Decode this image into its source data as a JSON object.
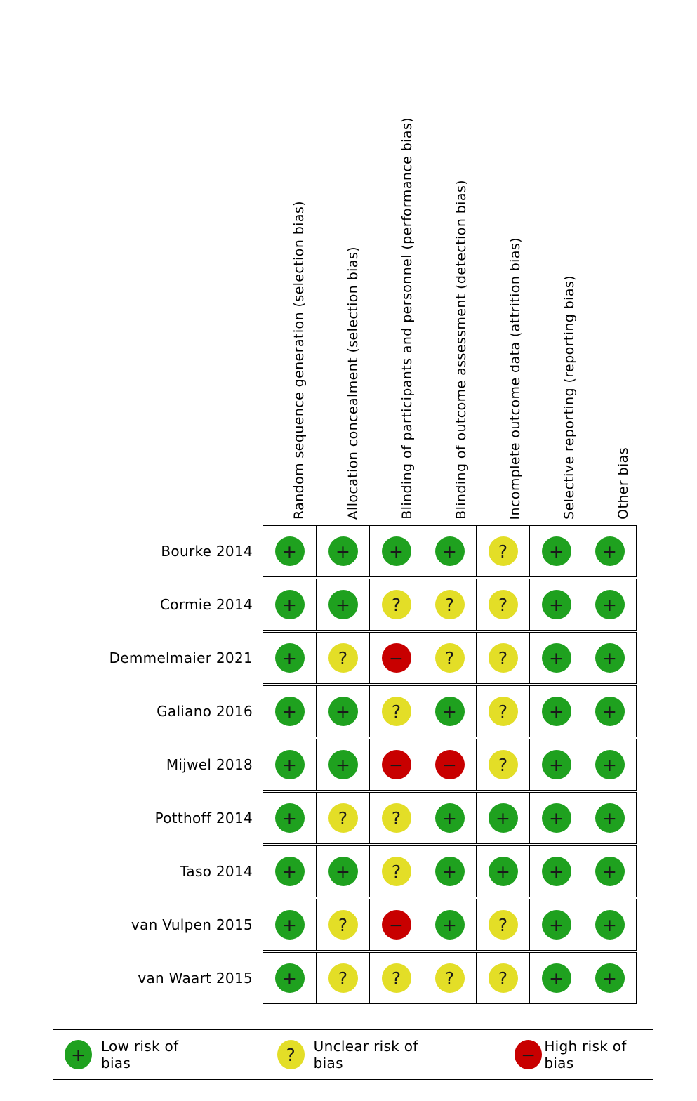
{
  "chart_data": {
    "type": "heatmap",
    "description": "Risk of bias summary: review authors' judgements about each risk of bias item for each included study",
    "columns": [
      "Random sequence generation (selection bias)",
      "Allocation concealment (selection bias)",
      "Blinding of participants and personnel (performance bias)",
      "Blinding of outcome assessment (detection bias)",
      "Incomplete outcome data (attrition bias)",
      "Selective reporting (reporting bias)",
      "Other bias"
    ],
    "rows": [
      {
        "study": "Bourke 2014",
        "ratings": [
          "low",
          "low",
          "low",
          "low",
          "unclear",
          "low",
          "low"
        ]
      },
      {
        "study": "Cormie 2014",
        "ratings": [
          "low",
          "low",
          "unclear",
          "unclear",
          "unclear",
          "low",
          "low"
        ]
      },
      {
        "study": "Demmelmaier 2021",
        "ratings": [
          "low",
          "unclear",
          "high",
          "unclear",
          "unclear",
          "low",
          "low"
        ]
      },
      {
        "study": "Galiano 2016",
        "ratings": [
          "low",
          "low",
          "unclear",
          "low",
          "unclear",
          "low",
          "low"
        ]
      },
      {
        "study": "Mijwel 2018",
        "ratings": [
          "low",
          "low",
          "high",
          "high",
          "unclear",
          "low",
          "low"
        ]
      },
      {
        "study": "Potthoff 2014",
        "ratings": [
          "low",
          "unclear",
          "unclear",
          "low",
          "low",
          "low",
          "low"
        ]
      },
      {
        "study": "Taso 2014",
        "ratings": [
          "low",
          "low",
          "unclear",
          "low",
          "low",
          "low",
          "low"
        ]
      },
      {
        "study": "van Vulpen 2015",
        "ratings": [
          "low",
          "unclear",
          "high",
          "low",
          "unclear",
          "low",
          "low"
        ]
      },
      {
        "study": "van Waart 2015",
        "ratings": [
          "low",
          "unclear",
          "unclear",
          "unclear",
          "unclear",
          "low",
          "low"
        ]
      }
    ],
    "symbols": {
      "low": "+",
      "unclear": "?",
      "high": "−"
    },
    "colors": {
      "low": "#1fa11f",
      "unclear": "#e3de27",
      "high": "#c80000",
      "symbol": "#1a1a1a",
      "grid_border": "#000000"
    },
    "legend": [
      {
        "rating": "low",
        "symbol": "+",
        "label": "Low risk of bias"
      },
      {
        "rating": "unclear",
        "symbol": "?",
        "label": "Unclear risk of bias"
      },
      {
        "rating": "high",
        "symbol": "−",
        "label": "High risk of bias"
      }
    ],
    "legend_position": "bottom"
  }
}
